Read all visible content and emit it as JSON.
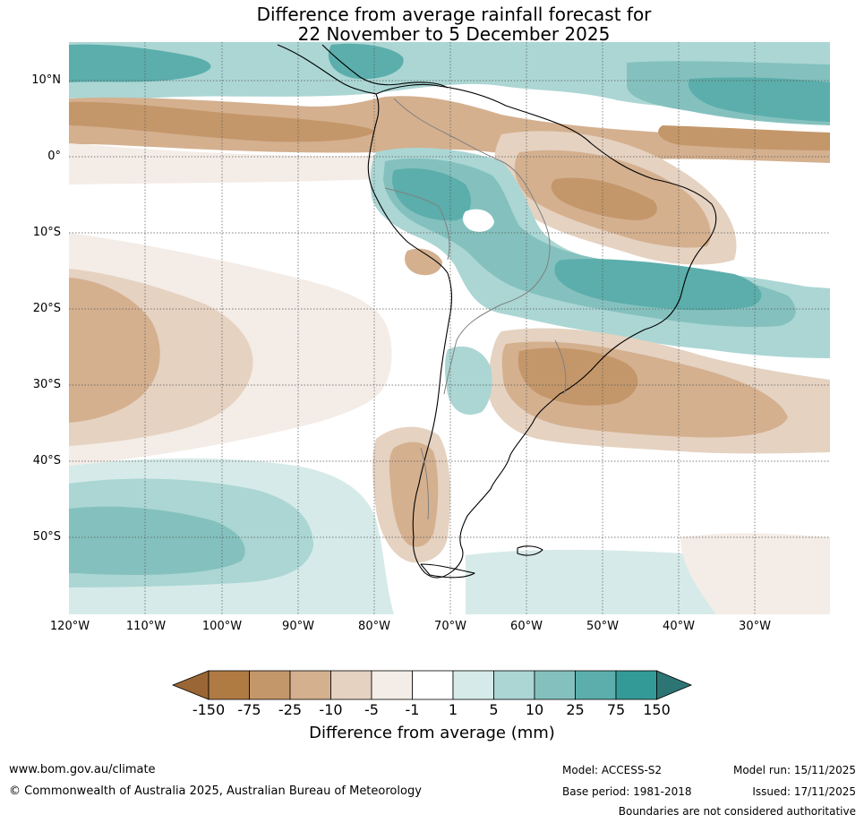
{
  "title": {
    "line1": "Difference from average rainfall forecast for",
    "line2": "22 November to 5 December 2025"
  },
  "map": {
    "lat_labels": [
      "10°N",
      "0°",
      "10°S",
      "20°S",
      "30°S",
      "40°S",
      "50°S"
    ],
    "lon_labels": [
      "120°W",
      "110°W",
      "100°W",
      "90°W",
      "80°W",
      "70°W",
      "60°W",
      "50°W",
      "40°W",
      "30°W"
    ]
  },
  "colorbar": {
    "title": "Difference from average (mm)",
    "ticks": [
      "-150",
      "-75",
      "-25",
      "-10",
      "-5",
      "-1",
      "1",
      "5",
      "10",
      "25",
      "75",
      "150"
    ],
    "colors": [
      "#9b6635",
      "#b07a43",
      "#c4976a",
      "#d4b08f",
      "#e5d2c1",
      "#f4ece6",
      "#ffffff",
      "#d6ebe9",
      "#abd6d4",
      "#84c1be",
      "#5baeab",
      "#339a97",
      "#2c7574"
    ]
  },
  "footer": {
    "website": "www.bom.gov.au/climate",
    "copyright": "© Commonwealth of Australia 2025, Australian Bureau of Meteorology",
    "model": "Model: ACCESS-S2",
    "base_period": "Base period: 1981-2018",
    "model_run": "Model run: 15/11/2025",
    "issued": "Issued: 17/11/2025",
    "disclaimer": "Boundaries are not considered authoritative"
  }
}
